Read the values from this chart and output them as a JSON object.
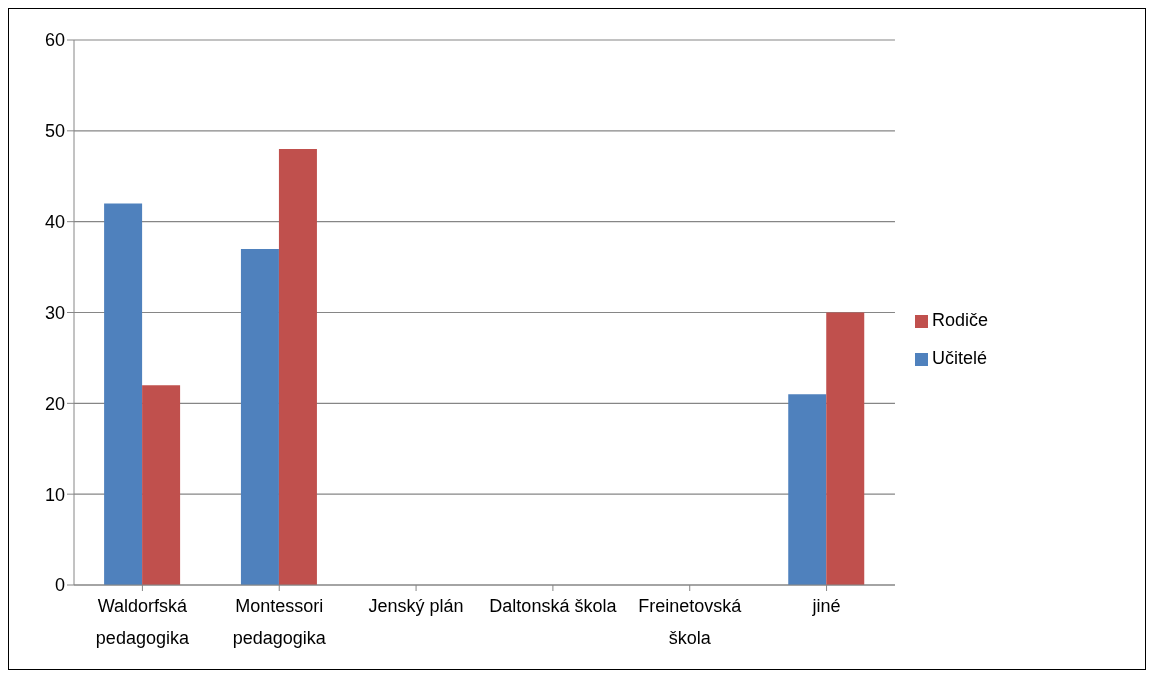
{
  "chart_data": {
    "type": "bar",
    "categories": [
      "Waldorfská pedagogika",
      "Montessori pedagogika",
      "Jenský plán",
      "Daltonská škola",
      "Freinetovská škola",
      "jiné"
    ],
    "series": [
      {
        "name": "Učitelé",
        "color": "#4f81bd",
        "values": [
          42,
          37,
          0,
          0,
          0,
          21
        ]
      },
      {
        "name": "Rodiče",
        "color": "#c0504d",
        "values": [
          22,
          48,
          0,
          0,
          0,
          30
        ]
      }
    ],
    "ylim": [
      0,
      60
    ],
    "yticks": [
      0,
      10,
      20,
      30,
      40,
      50,
      60
    ],
    "grid": "y",
    "legend": "right"
  }
}
